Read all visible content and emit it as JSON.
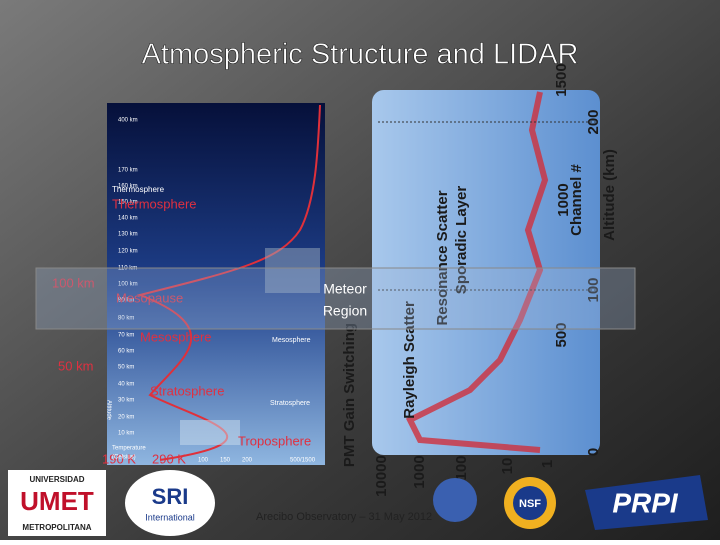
{
  "header": {
    "title": "Atmospheric Structure and LIDAR"
  },
  "atmosphere": {
    "altitude_labels": [
      "400 km",
      "170 km",
      "160 km",
      "150 km",
      "140 km",
      "130 km",
      "120 km",
      "110 km",
      "100 km",
      "90 km",
      "80 km",
      "70 km",
      "60 km",
      "50 km",
      "40 km",
      "30 km",
      "20 km",
      "10 km"
    ],
    "layers": [
      "Thermosphere",
      "Thermosphere",
      "Mesopause",
      "Mesosphere",
      "Mesosphere",
      "Stratosphere",
      "Stratosphere",
      "Troposphere"
    ],
    "markers": [
      "100 km",
      "50 km"
    ],
    "temperatures": [
      "190 K",
      "290 K"
    ],
    "temperature_axis": [
      "Temperature",
      "(Celsius)"
    ],
    "axis_ticks": [
      "100",
      "150",
      "200",
      "500/1500"
    ],
    "vertical_label": "Altitude"
  },
  "lidar": {
    "altitude_axis": "Altitude (km)",
    "altitude_ticks": [
      "0",
      "100",
      "200"
    ],
    "channel_axis": "Channel #",
    "channel_ticks": [
      "500",
      "1000",
      "1500"
    ],
    "counts_ticks": [
      "10000",
      "1000",
      "100",
      "10",
      "1"
    ],
    "annotations": [
      "Resonance Scatter",
      "Sporadic Layer",
      "Rayleigh Scatter",
      "PMT Gain Switching"
    ],
    "region": [
      "Meteor",
      "Region"
    ]
  },
  "footer": {
    "text": "Arecibo Observatory – 31 May 2012",
    "logos": [
      "UNIVERSIDAD",
      "UMET",
      "METROPOLITANA",
      "SRI",
      "International",
      "NSF",
      "PRPI"
    ]
  }
}
